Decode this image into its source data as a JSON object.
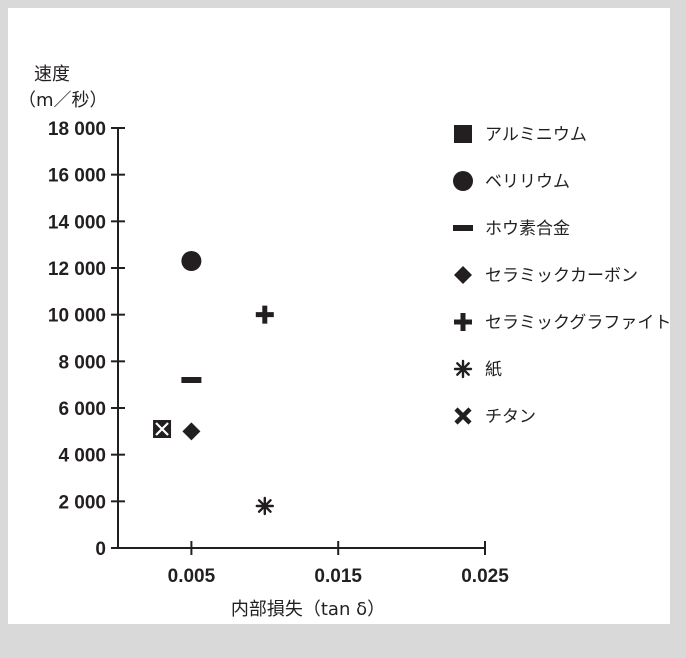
{
  "chart_data": {
    "type": "scatter",
    "title": "",
    "ylabel_line1": "速度",
    "ylabel_line2": "（m／秒）",
    "xlabel": "内部損失（tan δ）",
    "ylim": [
      0,
      18000
    ],
    "xlim": [
      0,
      0.025
    ],
    "y_ticks": [
      0,
      2000,
      4000,
      6000,
      8000,
      10000,
      12000,
      14000,
      16000,
      18000
    ],
    "y_tick_labels": [
      "0",
      "2 000",
      "4 000",
      "6 000",
      "8 000",
      "10 000",
      "12 000",
      "14 000",
      "16 000",
      "18 000"
    ],
    "x_ticks": [
      0.005,
      0.015,
      0.025
    ],
    "x_tick_labels": [
      "0.005",
      "0.015",
      "0.025"
    ],
    "legend_position": "right",
    "grid": false,
    "series": [
      {
        "name": "アルミニウム",
        "marker": "square",
        "x": 0.003,
        "y": 5100
      },
      {
        "name": "ベリリウム",
        "marker": "circle",
        "x": 0.005,
        "y": 12300
      },
      {
        "name": "ホウ素合金",
        "marker": "dash",
        "x": 0.005,
        "y": 7200
      },
      {
        "name": "セラミックカーボン",
        "marker": "diamond",
        "x": 0.005,
        "y": 5000
      },
      {
        "name": "セラミックグラファイト",
        "marker": "plus",
        "x": 0.01,
        "y": 10000
      },
      {
        "name": "紙",
        "marker": "asterisk",
        "x": 0.01,
        "y": 1800
      },
      {
        "name": "チタン",
        "marker": "cross",
        "x": 0.003,
        "y": 5100
      }
    ],
    "colors": {
      "ink": "#231f20",
      "background": "#ffffff",
      "border": "#d9d9d9"
    }
  }
}
